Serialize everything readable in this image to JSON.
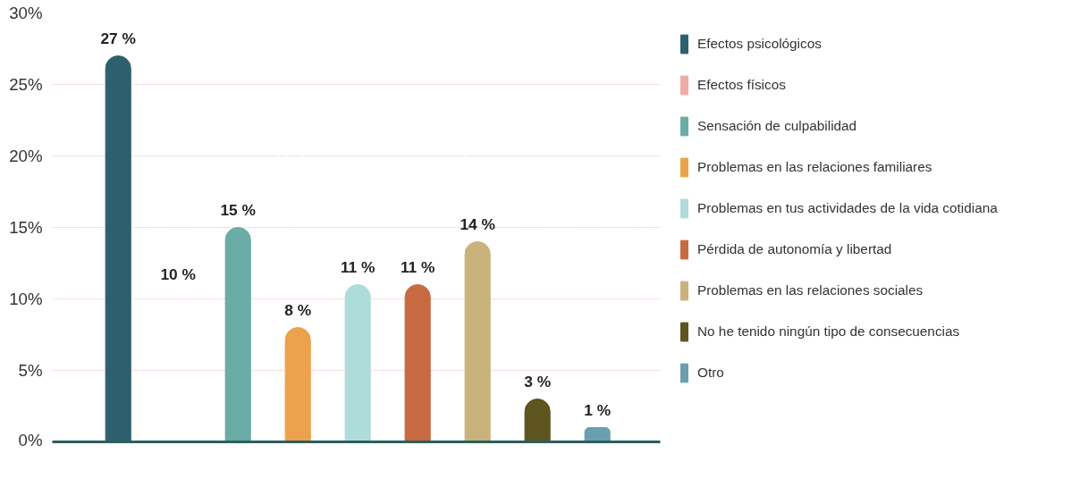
{
  "chart_data": {
    "type": "bar",
    "categories": [
      null,
      null,
      null,
      null,
      null,
      null,
      null,
      null,
      null
    ],
    "series": [
      {
        "name": "Efectos psicológicos",
        "color": "#2e5f6e",
        "values": [
          27,
          null,
          null,
          null,
          null,
          null,
          null,
          null,
          null
        ],
        "value_labels": [
          "27 %",
          null,
          null,
          null,
          null,
          null,
          null,
          null,
          null
        ]
      },
      {
        "name": "Efectos físicos",
        "color": "#f0aaa4",
        "values": [
          null,
          null,
          null,
          null,
          null,
          null,
          null,
          null,
          null
        ],
        "value_labels": [
          null,
          null,
          null,
          null,
          null,
          null,
          null,
          null,
          null
        ]
      },
      {
        "name": "Sensación de culpabilidad",
        "color": "#6aaca6",
        "values": [
          null,
          null,
          15,
          null,
          null,
          null,
          null,
          null,
          null
        ],
        "value_labels": [
          null,
          null,
          "15 %",
          null,
          null,
          null,
          null,
          null,
          null
        ]
      },
      {
        "name": "Problemas en las relaciones familiares",
        "color": "#eca24c",
        "values": [
          null,
          null,
          null,
          8,
          null,
          null,
          null,
          null,
          null
        ],
        "value_labels": [
          null,
          null,
          null,
          "8 %",
          null,
          null,
          null,
          null,
          null
        ]
      },
      {
        "name": "Problemas en tus actividades de la vida cotidiana",
        "color": "#afdbd8",
        "values": [
          null,
          null,
          null,
          null,
          11,
          null,
          null,
          null,
          null
        ],
        "value_labels": [
          null,
          null,
          null,
          null,
          "11 %",
          null,
          null,
          null,
          null
        ]
      },
      {
        "name": "Pérdida de autonomía y libertad",
        "color": "#c76a42",
        "values": [
          null,
          null,
          null,
          null,
          null,
          11,
          null,
          null,
          null
        ],
        "value_labels": [
          null,
          null,
          null,
          null,
          null,
          "11 %",
          null,
          null,
          null
        ]
      },
      {
        "name": "Problemas en las relaciones sociales",
        "color": "#c9b27c",
        "values": [
          null,
          null,
          null,
          null,
          null,
          null,
          14,
          null,
          null
        ],
        "value_labels": [
          null,
          null,
          null,
          null,
          null,
          null,
          "14 %",
          null,
          null
        ]
      },
      {
        "name": "No he tenido ningún tipo de consecuencias",
        "color": "#5e5420",
        "values": [
          null,
          null,
          null,
          null,
          null,
          null,
          null,
          3,
          null
        ],
        "value_labels": [
          null,
          null,
          null,
          null,
          null,
          null,
          null,
          "3 %",
          null
        ]
      },
      {
        "name": "Otro",
        "color": "#6a9fb0",
        "values": [
          null,
          null,
          null,
          null,
          null,
          null,
          null,
          null,
          1
        ],
        "value_labels": [
          null,
          null,
          null,
          null,
          null,
          null,
          null,
          null,
          "1 %"
        ]
      }
    ],
    "annotations": [
      "10 %"
    ],
    "ylim": [
      0,
      30
    ],
    "yticks": [
      {
        "value": 0,
        "label": "0%"
      },
      {
        "value": 5,
        "label": "5%"
      },
      {
        "value": 10,
        "label": "10%"
      },
      {
        "value": 15,
        "label": "15%"
      },
      {
        "value": 20,
        "label": "20%"
      },
      {
        "value": 25,
        "label": "25%"
      },
      {
        "value": 30,
        "label": "30%"
      }
    ],
    "tick_labels": "y",
    "grid": "y",
    "legend": "right"
  }
}
